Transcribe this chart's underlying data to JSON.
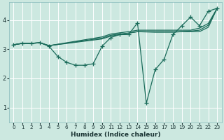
{
  "xlabel": "Humidex (Indice chaleur)",
  "bg_color": "#cce8e0",
  "grid_color": "#ffffff",
  "line_color": "#1a6b5a",
  "xlim": [
    -0.5,
    23.5
  ],
  "ylim": [
    0.5,
    4.6
  ],
  "xticks": [
    0,
    1,
    2,
    3,
    4,
    5,
    6,
    7,
    8,
    9,
    10,
    11,
    12,
    13,
    14,
    15,
    16,
    17,
    18,
    19,
    20,
    21,
    22,
    23
  ],
  "yticks": [
    1,
    2,
    3,
    4
  ],
  "lines": [
    {
      "x": [
        0,
        1,
        2,
        3,
        4,
        5,
        6,
        7,
        8,
        9,
        10,
        11,
        12,
        13,
        14,
        15,
        16,
        17,
        18,
        19,
        20,
        21,
        22,
        23
      ],
      "y": [
        3.15,
        3.2,
        3.2,
        3.22,
        3.1,
        2.75,
        2.55,
        2.45,
        2.45,
        2.5,
        3.1,
        3.4,
        3.5,
        3.5,
        3.9,
        1.15,
        2.3,
        2.65,
        3.5,
        3.8,
        4.1,
        3.8,
        4.3,
        4.4
      ],
      "marker": true
    },
    {
      "x": [
        0,
        1,
        2,
        3,
        4,
        10,
        11,
        12,
        13,
        14,
        16,
        17,
        18,
        19,
        20,
        21,
        22,
        23
      ],
      "y": [
        3.15,
        3.2,
        3.2,
        3.22,
        3.12,
        3.35,
        3.45,
        3.5,
        3.55,
        3.6,
        3.6,
        3.6,
        3.6,
        3.6,
        3.6,
        3.6,
        3.75,
        4.4
      ],
      "marker": false
    },
    {
      "x": [
        0,
        1,
        2,
        3,
        4,
        10,
        11,
        12,
        13,
        14,
        16,
        17,
        18,
        19,
        20,
        21,
        22,
        23
      ],
      "y": [
        3.15,
        3.2,
        3.2,
        3.22,
        3.12,
        3.42,
        3.52,
        3.56,
        3.6,
        3.65,
        3.65,
        3.65,
        3.65,
        3.65,
        3.65,
        3.72,
        3.88,
        4.4
      ],
      "marker": false
    },
    {
      "x": [
        0,
        1,
        2,
        3,
        4,
        10,
        11,
        12,
        13,
        14,
        16,
        17,
        18,
        19,
        20,
        21,
        22,
        23
      ],
      "y": [
        3.15,
        3.2,
        3.2,
        3.22,
        3.12,
        3.38,
        3.48,
        3.52,
        3.55,
        3.6,
        3.58,
        3.58,
        3.58,
        3.6,
        3.62,
        3.65,
        3.82,
        4.4
      ],
      "marker": false
    }
  ]
}
